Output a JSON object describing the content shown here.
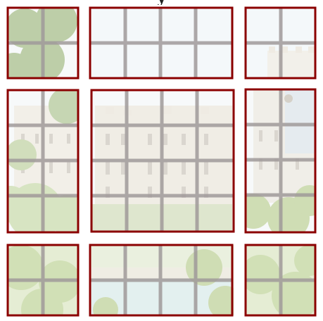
{
  "puzzle": {
    "title_fragment": "y",
    "colors": {
      "tile_border": "#8b0000",
      "grid_lines": "#9b9b9b",
      "sky": "#eef4f7",
      "castle_stone": "#ece8df",
      "castle_tower_blue": "#cfe0ea",
      "foliage": "#b6cb8c",
      "foliage_dark": "#8fae6a",
      "water": "#cfe7ea"
    },
    "tiles": [
      {
        "name": "tile-top-left",
        "row": 0,
        "col": 0
      },
      {
        "name": "tile-top-center",
        "row": 0,
        "col": 1
      },
      {
        "name": "tile-top-right",
        "row": 0,
        "col": 2
      },
      {
        "name": "tile-middle-left",
        "row": 1,
        "col": 0
      },
      {
        "name": "tile-middle-center",
        "row": 1,
        "col": 1
      },
      {
        "name": "tile-middle-right",
        "row": 1,
        "col": 2
      },
      {
        "name": "tile-bottom-left",
        "row": 2,
        "col": 0
      },
      {
        "name": "tile-bottom-center",
        "row": 2,
        "col": 1
      },
      {
        "name": "tile-bottom-right",
        "row": 2,
        "col": 2
      }
    ]
  }
}
